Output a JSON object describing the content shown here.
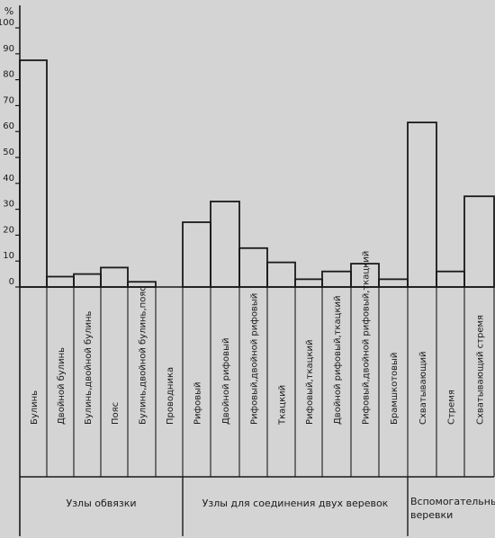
{
  "chart_data": {
    "type": "bar",
    "ylabel": "%",
    "ylim": [
      0,
      100
    ],
    "yticks": [
      0,
      10,
      20,
      30,
      40,
      50,
      60,
      70,
      80,
      90,
      100
    ],
    "categories": [
      "Булинь",
      "Двойной булинь",
      "Булинь,двойной булинь",
      "Пояс",
      "Булинь,двойной булинь,пояс",
      "Проводника",
      "Рифовый",
      "Двойной рифовый",
      "Рифовый,двойной рифовый",
      "Ткацкий",
      "Рифовый,ткацкий",
      "Двойной рифовый,ткацкий",
      "Рифовый,двойной рифовый,ткацкий",
      "Брамшкотовый",
      "Схватывающий",
      "Стремя",
      "Схватывающий стремя"
    ],
    "values": [
      87.5,
      4,
      5,
      7.5,
      2,
      0,
      25,
      33,
      15,
      9.5,
      3,
      6,
      9,
      3,
      63.5,
      6,
      35
    ],
    "groups": [
      {
        "label": "Узлы обвязки",
        "start": 0,
        "end": 5
      },
      {
        "label": "Узлы для соединения двух веревок",
        "start": 6,
        "end": 13
      },
      {
        "label": "Вспомогательные веревки",
        "start": 14,
        "end": 16
      }
    ],
    "grid": false,
    "legend": "none"
  },
  "colors": {
    "background": "#d4d4d4",
    "ink": "#1a1a1a"
  }
}
